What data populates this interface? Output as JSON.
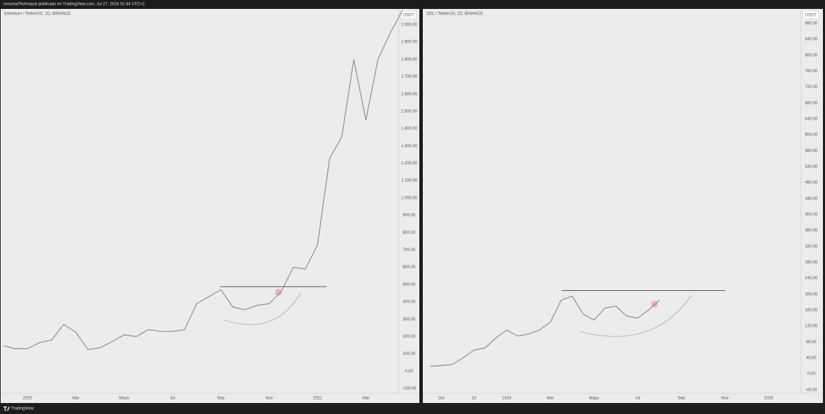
{
  "header": {
    "text": "InmortalTechnique publicado en TradingView.com, Jul 27, 2024 01:44 UTC+2"
  },
  "footer": {
    "brand": "TradingView"
  },
  "chart_data": [
    {
      "type": "line",
      "title": "Ethereum / TetherUS, 1D, BINANCE",
      "currency": "USDT",
      "color": "#8c8c8c",
      "categories": [
        null,
        null,
        "2020",
        null,
        null,
        null,
        "Mar",
        null,
        null,
        null,
        "Mayo",
        null,
        null,
        null,
        "Jul",
        null,
        null,
        null,
        "Sep",
        null,
        null,
        null,
        "Nov",
        null,
        null,
        null,
        "2021",
        null,
        null,
        null,
        "Mar",
        null,
        null,
        null
      ],
      "values": [
        147,
        130,
        130,
        165,
        180,
        270,
        225,
        125,
        135,
        170,
        210,
        200,
        240,
        230,
        230,
        240,
        390,
        430,
        470,
        370,
        355,
        380,
        390,
        460,
        600,
        590,
        730,
        1230,
        1350,
        1800,
        1450,
        1800,
        1950,
        2080
      ],
      "hline": 488,
      "ylim": [
        -128,
        2091
      ],
      "yticks": [
        {
          "value": -100,
          "label": "-100,00"
        },
        {
          "value": 0,
          "label": "0,00"
        },
        {
          "value": 100,
          "label": "100,00"
        },
        {
          "value": 200,
          "label": "200,00"
        },
        {
          "value": 300,
          "label": "300,00"
        },
        {
          "value": 400,
          "label": "400,00"
        },
        {
          "value": 500,
          "label": "500,00"
        },
        {
          "value": 600,
          "label": "600,00"
        },
        {
          "value": 700,
          "label": "700,00"
        },
        {
          "value": 800,
          "label": "800,00"
        },
        {
          "value": 900,
          "label": "900,00"
        },
        {
          "value": 1000,
          "label": "1.000,00"
        },
        {
          "value": 1100,
          "label": "1.100,00"
        },
        {
          "value": 1200,
          "label": "1.200,00"
        },
        {
          "value": 1300,
          "label": "1.300,00"
        },
        {
          "value": 1400,
          "label": "1.400,00"
        },
        {
          "value": 1500,
          "label": "1.500,00"
        },
        {
          "value": 1600,
          "label": "1.600,00"
        },
        {
          "value": 1700,
          "label": "1.700,00"
        },
        {
          "value": 1800,
          "label": "1.800,00"
        },
        {
          "value": 1900,
          "label": "1.900,00"
        },
        {
          "value": 2000,
          "label": "2.000,00"
        }
      ]
    },
    {
      "type": "line",
      "title": "SOL / TetherUS, 1D, BINANCE",
      "currency": "USDT",
      "color": "#8c8c8c",
      "categories": [
        null,
        "Oct",
        null,
        null,
        "15",
        null,
        null,
        "2024",
        null,
        null,
        null,
        "Mar",
        null,
        null,
        null,
        "Mayo",
        null,
        null,
        null,
        "Jul",
        null,
        null,
        null,
        "Sep",
        null,
        null,
        null,
        "Nov",
        null,
        null,
        null,
        "2025",
        null,
        null,
        null,
        null
      ],
      "values": [
        19,
        21,
        23,
        40,
        60,
        65,
        90,
        110,
        95,
        100,
        110,
        130,
        185,
        195,
        150,
        135,
        165,
        170,
        145,
        140,
        160,
        185,
        null,
        null,
        null,
        null,
        null,
        null,
        null,
        null,
        null,
        null,
        null,
        null,
        null,
        null
      ],
      "hline": 209,
      "ylim": [
        -49,
        916
      ],
      "yticks": [
        {
          "value": -40,
          "label": "-40,00"
        },
        {
          "value": 0,
          "label": "0,00"
        },
        {
          "value": 40,
          "label": "40,00"
        },
        {
          "value": 80,
          "label": "80,00"
        },
        {
          "value": 120,
          "label": "120,00"
        },
        {
          "value": 160,
          "label": "160,00"
        },
        {
          "value": 200,
          "label": "200,00"
        },
        {
          "value": 240,
          "label": "240,00"
        },
        {
          "value": 280,
          "label": "280,00"
        },
        {
          "value": 320,
          "label": "320,00"
        },
        {
          "value": 360,
          "label": "360,00"
        },
        {
          "value": 400,
          "label": "400,00"
        },
        {
          "value": 440,
          "label": "440,00"
        },
        {
          "value": 480,
          "label": "480,00"
        },
        {
          "value": 520,
          "label": "520,00"
        },
        {
          "value": 560,
          "label": "560,00"
        },
        {
          "value": 600,
          "label": "600,00"
        },
        {
          "value": 640,
          "label": "640,00"
        },
        {
          "value": 680,
          "label": "680,00"
        },
        {
          "value": 720,
          "label": "720,00"
        },
        {
          "value": 760,
          "label": "760,00"
        },
        {
          "value": 800,
          "label": "800,00"
        },
        {
          "value": 840,
          "label": "840,00"
        },
        {
          "value": 880,
          "label": "880,00"
        }
      ]
    }
  ]
}
